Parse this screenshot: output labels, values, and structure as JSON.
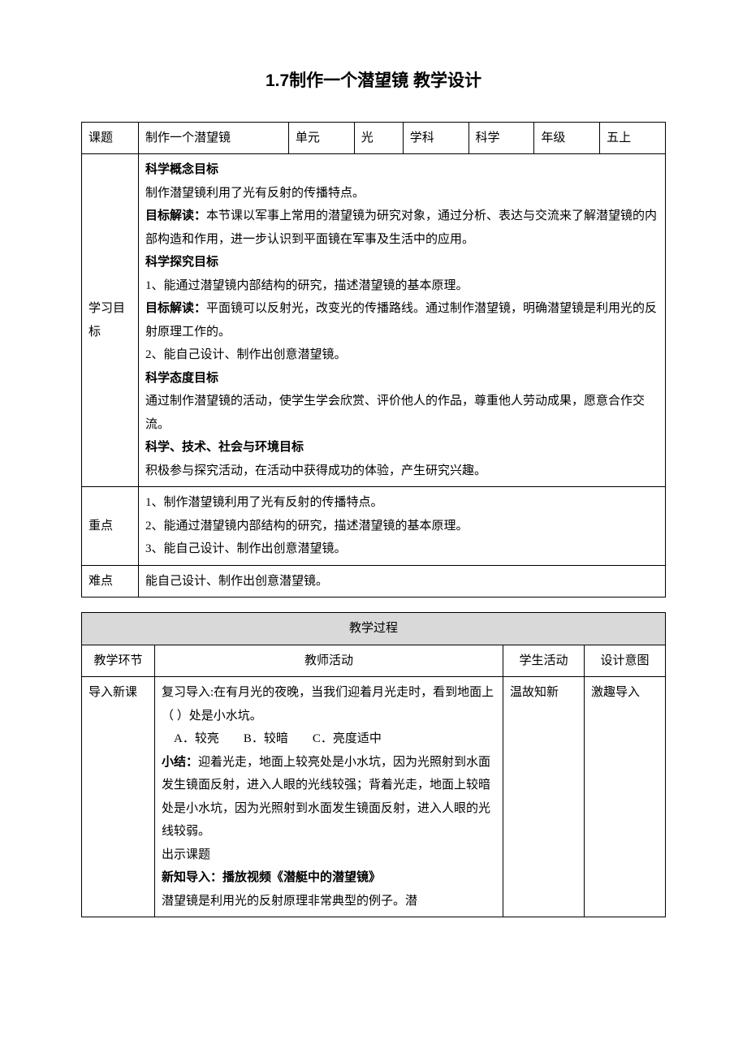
{
  "title": "1.7制作一个潜望镜 教学设计",
  "table1": {
    "row1": {
      "label1": "课题",
      "value1": "制作一个潜望镜",
      "label2": "单元",
      "value2": "光",
      "label3": "学科",
      "value3": "科学",
      "label4": "年级",
      "value4": "五上"
    },
    "objectives": {
      "label": "学习目标",
      "h1": "科学概念目标",
      "p1": "制作潜望镜利用了光有反射的传播特点。",
      "p2a": "目标解读：",
      "p2b": "本节课以军事上常用的潜望镜为研究对象，通过分析、表达与交流来了解潜望镜的内部构造和作用，进一步认识到平面镜在军事及生活中的应用。",
      "h2": "科学探究目标",
      "p3": "1、能通过潜望镜内部结构的研究，描述潜望镜的基本原理。",
      "p4a": "目标解读：",
      "p4b": "平面镜可以反射光，改变光的传播路线。通过制作潜望镜，明确潜望镜是利用光的反射原理工作的。",
      "p5": "2、能自己设计、制作出创意潜望镜。",
      "h3": "科学态度目标",
      "p6": "通过制作潜望镜的活动，使学生学会欣赏、评价他人的作品，尊重他人劳动成果，愿意合作交流。",
      "h4": "科学、技术、社会与环境目标",
      "p7": "积极参与探究活动，在活动中获得成功的体验，产生研究兴趣。"
    },
    "keypoints": {
      "label": "重点",
      "p1": "1、制作潜望镜利用了光有反射的传播特点。",
      "p2": "2、能通过潜望镜内部结构的研究，描述潜望镜的基本原理。",
      "p3": "3、能自己设计、制作出创意潜望镜。"
    },
    "difficulty": {
      "label": "难点",
      "value": "能自己设计、制作出创意潜望镜。"
    }
  },
  "table2": {
    "header": "教学过程",
    "columns": {
      "c1": "教学环节",
      "c2": "教师活动",
      "c3": "学生活动",
      "c4": "设计意图"
    },
    "row1": {
      "stage": "导入新课",
      "activity": {
        "p1": "复习导入:在有月光的夜晚，当我们迎着月光走时，看到地面上（    ）处是小水坑。",
        "p2": "　A．较亮　　B．较暗　　C．亮度适中",
        "p3a": "小结：",
        "p3b": "迎着光走，地面上较亮处是小水坑，因为光照射到水面发生镜面反射，进入人眼的光线较强；背着光走，地面上较暗处是小水坑，因为光照射到水面发生镜面反射，进入人眼的光线较弱。",
        "p4": "出示课题",
        "p5a": "新知导入：",
        "p5b": "播放视频《潜艇中的潜望镜》",
        "p6": "潜望镜是利用光的反射原理非常典型的例子。潜"
      },
      "student": "温故知新",
      "intent": "激趣导入"
    }
  }
}
